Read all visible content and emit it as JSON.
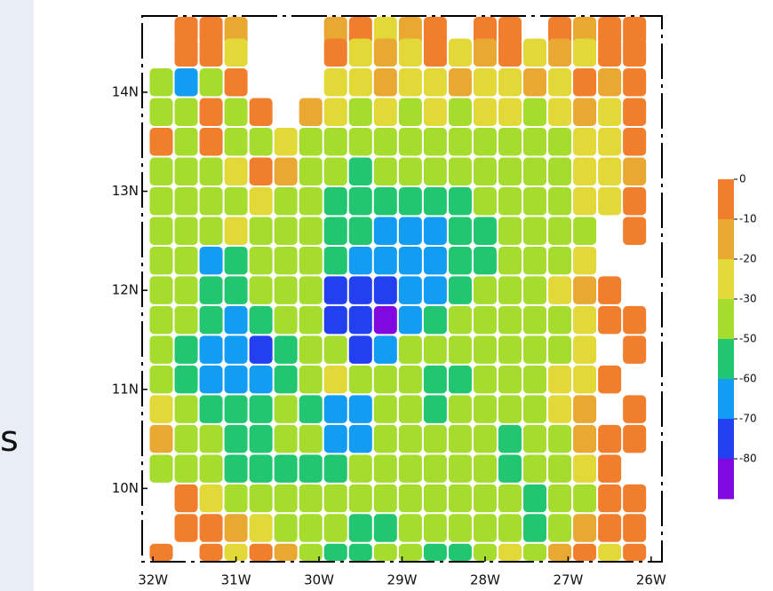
{
  "side_text": "s",
  "chart_data": {
    "type": "gridded-map",
    "xlim": [
      -32.13,
      -25.87
    ],
    "ylim": [
      9.26,
      14.77
    ],
    "xticks": [
      {
        "value": -32,
        "label": "32W"
      },
      {
        "value": -31,
        "label": "31W"
      },
      {
        "value": -30,
        "label": "30W"
      },
      {
        "value": -29,
        "label": "29W"
      },
      {
        "value": -28,
        "label": "28W"
      },
      {
        "value": -27,
        "label": "27W"
      },
      {
        "value": -26,
        "label": "26W"
      }
    ],
    "yticks": [
      {
        "value": 10,
        "label": "10N"
      },
      {
        "value": 11,
        "label": "11N"
      },
      {
        "value": 12,
        "label": "12N"
      },
      {
        "value": 13,
        "label": "13N"
      },
      {
        "value": 14,
        "label": "14N"
      }
    ],
    "lons": [
      -31.9,
      -31.6,
      -31.3,
      -31.0,
      -30.7,
      -30.4,
      -30.1,
      -29.8,
      -29.5,
      -29.2,
      -28.9,
      -28.6,
      -28.3,
      -28.0,
      -27.7,
      -27.4,
      -27.1,
      -26.8,
      -26.5,
      -26.2
    ],
    "lats": [
      14.7,
      14.4,
      14.1,
      13.8,
      13.5,
      13.2,
      12.9,
      12.6,
      12.3,
      12.0,
      11.7,
      11.4,
      11.1,
      10.8,
      10.5,
      10.2,
      9.9,
      9.6,
      9.3
    ],
    "values": [
      [
        null,
        -5,
        -5,
        -15,
        null,
        null,
        null,
        -15,
        -5,
        -25,
        -15,
        -5,
        null,
        -5,
        -5,
        null,
        -5,
        -15,
        -5,
        -5
      ],
      [
        null,
        -5,
        -5,
        -25,
        null,
        null,
        null,
        -5,
        -25,
        -15,
        -25,
        -5,
        -25,
        -15,
        -5,
        -25,
        -15,
        -25,
        -5,
        -5
      ],
      [
        -40,
        -65,
        -40,
        -5,
        null,
        null,
        null,
        -25,
        -25,
        -15,
        -25,
        -25,
        -15,
        -25,
        -25,
        -15,
        -25,
        -5,
        -15,
        -5
      ],
      [
        -40,
        -40,
        -5,
        -40,
        -5,
        null,
        -15,
        -25,
        -40,
        -25,
        -40,
        -25,
        -40,
        -25,
        -25,
        -40,
        -25,
        -15,
        -25,
        -5
      ],
      [
        -5,
        -40,
        -5,
        -40,
        -40,
        -25,
        -40,
        -40,
        -40,
        -40,
        -40,
        -40,
        -40,
        -40,
        -40,
        -40,
        -40,
        -25,
        -25,
        -5
      ],
      [
        -40,
        -40,
        -40,
        -25,
        -5,
        -15,
        -40,
        -40,
        -55,
        -40,
        -40,
        -40,
        -40,
        -40,
        -40,
        -40,
        -40,
        -25,
        -25,
        -15
      ],
      [
        -40,
        -40,
        -40,
        -40,
        -25,
        -40,
        -40,
        -55,
        -55,
        -55,
        -55,
        -55,
        -55,
        -40,
        -40,
        -40,
        -40,
        -25,
        -25,
        -5
      ],
      [
        -40,
        -40,
        -40,
        -25,
        -40,
        -40,
        -40,
        -55,
        -55,
        -65,
        -65,
        -65,
        -55,
        -55,
        -40,
        -40,
        -40,
        -40,
        null,
        -5
      ],
      [
        -40,
        -40,
        -65,
        -55,
        -40,
        -40,
        -40,
        -55,
        -65,
        -65,
        -65,
        -65,
        -55,
        -55,
        -40,
        -40,
        -40,
        -25,
        null,
        null
      ],
      [
        -40,
        -40,
        -55,
        -55,
        -40,
        -40,
        -40,
        -75,
        -75,
        -75,
        -65,
        -65,
        -55,
        -40,
        -40,
        -40,
        -25,
        -15,
        -5,
        null
      ],
      [
        -40,
        -40,
        -55,
        -65,
        -55,
        -40,
        -40,
        -75,
        -75,
        -85,
        -65,
        -55,
        -40,
        -40,
        -40,
        -40,
        -40,
        -25,
        -5,
        -5
      ],
      [
        -40,
        -55,
        -65,
        -65,
        -75,
        -55,
        -40,
        -40,
        -75,
        -65,
        -40,
        -40,
        -40,
        -40,
        -40,
        -40,
        -40,
        -25,
        null,
        -5
      ],
      [
        -40,
        -55,
        -65,
        -65,
        -65,
        -55,
        -40,
        -25,
        -40,
        -40,
        -40,
        -55,
        -55,
        -40,
        -40,
        -40,
        -25,
        -25,
        -5,
        null
      ],
      [
        -25,
        -40,
        -55,
        -55,
        -55,
        -40,
        -55,
        -65,
        -65,
        -40,
        -40,
        -55,
        -40,
        -40,
        -40,
        -40,
        -25,
        -15,
        null,
        -5
      ],
      [
        -15,
        -40,
        -40,
        -55,
        -55,
        -40,
        -40,
        -65,
        -65,
        -40,
        -40,
        -40,
        -40,
        -40,
        -55,
        -40,
        -40,
        -15,
        -5,
        -5
      ],
      [
        -40,
        -40,
        -40,
        -55,
        -55,
        -55,
        -55,
        -55,
        -40,
        -40,
        -40,
        -40,
        -40,
        -40,
        -55,
        -40,
        -40,
        -25,
        -5,
        null
      ],
      [
        null,
        -5,
        -25,
        -40,
        -40,
        -40,
        -40,
        -40,
        -40,
        -40,
        -40,
        -40,
        -40,
        -40,
        -40,
        -55,
        -40,
        -40,
        -5,
        -5
      ],
      [
        null,
        -5,
        -5,
        -15,
        -25,
        -40,
        -40,
        -40,
        -55,
        -55,
        -40,
        -40,
        -40,
        -40,
        -40,
        -55,
        -40,
        -15,
        -5,
        -5
      ],
      [
        -5,
        null,
        -5,
        -25,
        -5,
        -15,
        -40,
        -55,
        -55,
        -40,
        -40,
        -55,
        -55,
        -40,
        -25,
        -40,
        -15,
        -5,
        -25,
        -5
      ]
    ],
    "colorbar": {
      "ticks": [
        0,
        -10,
        -20,
        -30,
        -50,
        -60,
        -70,
        -80
      ],
      "colors": [
        "#f07e2c",
        "#e8a832",
        "#e2d838",
        "#a6dc2e",
        "#22c670",
        "#129cf2",
        "#2240f0",
        "#8208e0"
      ]
    }
  }
}
